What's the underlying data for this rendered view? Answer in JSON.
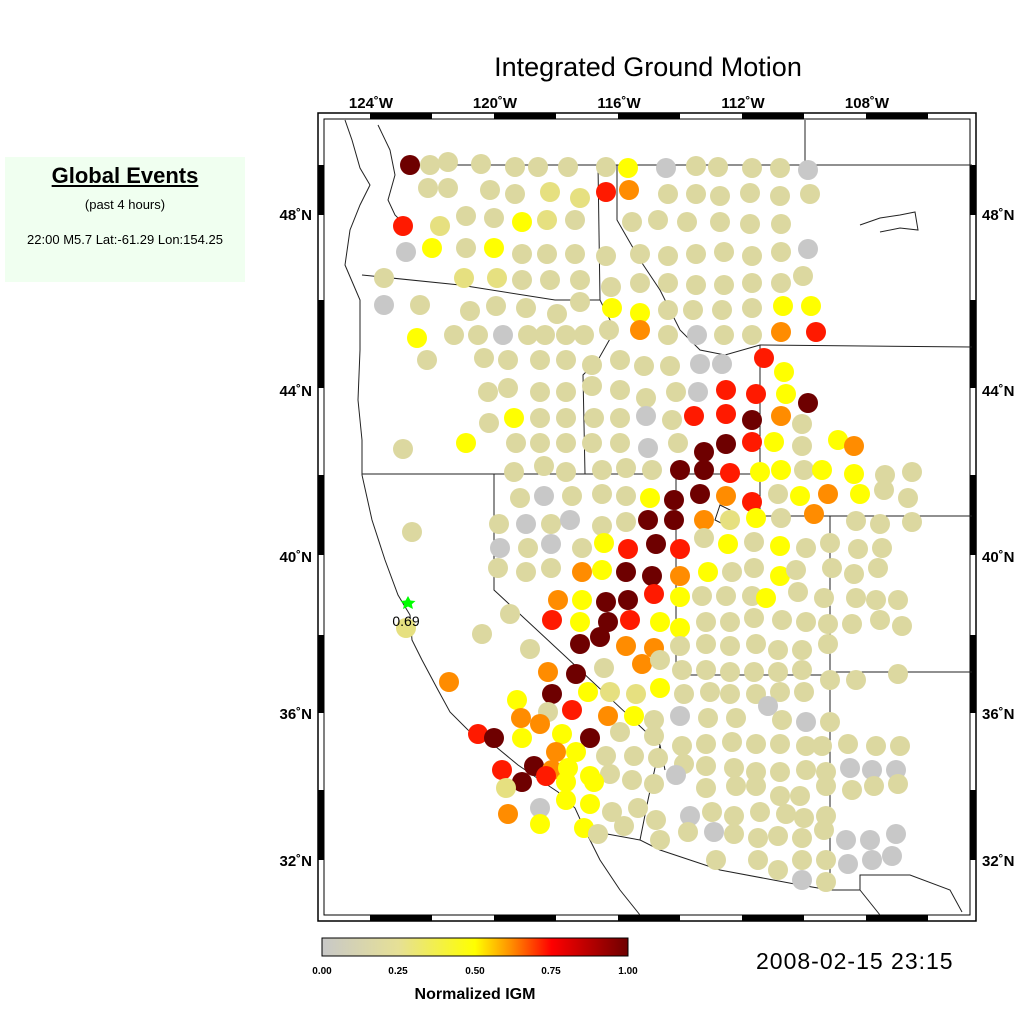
{
  "events_panel": {
    "title": "Global Events",
    "subtitle": "(past 4 hours)",
    "events": [
      "22:00 M5.7 Lat:-61.29 Lon:154.25"
    ]
  },
  "map": {
    "title": "Integrated Ground Motion",
    "timestamp": "2008-02-15 23:15",
    "lon_range": [
      -125,
      -106
    ],
    "lat_range": [
      30.6,
      50.1
    ],
    "lon_ticks": [
      "124˚W",
      "120˚W",
      "116˚W",
      "112˚W",
      "108˚W"
    ],
    "lat_ticks": [
      "48˚N",
      "44˚N",
      "40˚N",
      "36˚N",
      "32˚N"
    ],
    "epicenter": {
      "marker": "star-icon",
      "color": "#00ff00",
      "label": "0.69"
    },
    "stations_note": "colored circles = normalized IGM at each station"
  },
  "colorbar": {
    "label": "Normalized IGM",
    "ticks": [
      "0.00",
      "0.25",
      "0.50",
      "0.75",
      "1.00"
    ],
    "colors": [
      "#c8c8c8",
      "#e6e096",
      "#ffff00",
      "#ff8c00",
      "#ff0000",
      "#6e0000"
    ]
  }
}
